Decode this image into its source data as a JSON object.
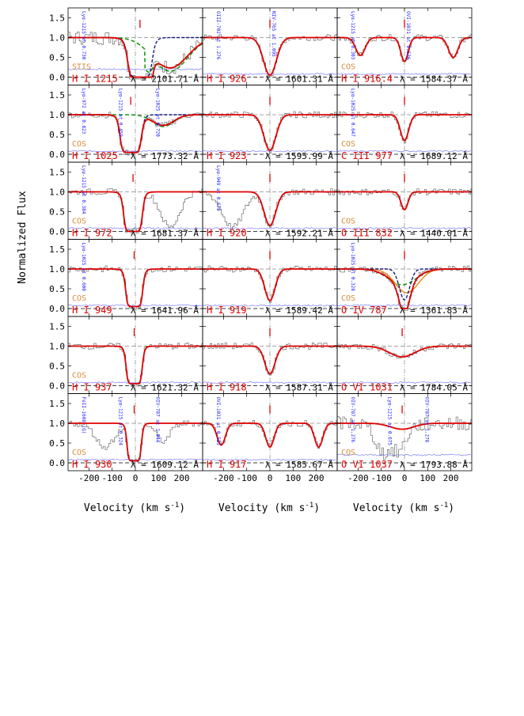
{
  "figure": {
    "ylabel": "Normalized Flux",
    "xlabel": "Velocity (km s",
    "xlabel_exp": "-1",
    "xlabel_close": ")",
    "colors": {
      "data": "#555555",
      "error": "#6a6aff",
      "fit": "#e00000",
      "component": "#1a1a80",
      "blend_fit": "#1a9a1a",
      "blend_fit2": "#e88a1a",
      "ion_label": "#e00000",
      "instrument": "#d98c3a",
      "annotation": "#1a1aff"
    }
  },
  "chart_data": [
    {
      "panel": 1,
      "type": "line",
      "ion": "H I 1215",
      "lambda": "λ = 2101.71 Å",
      "instrument": "STIS",
      "line": {
        "center": 20,
        "depth": 1.0,
        "width": 55,
        "profile": "damped"
      },
      "blend": {
        "center": 150,
        "depth": 0.85,
        "width": 75
      },
      "annotations": [
        "Lyα-1215 at 0.730"
      ],
      "xlim": [
        -290,
        290
      ],
      "ylim": [
        -0.2,
        1.75
      ]
    },
    {
      "panel": 2,
      "type": "line",
      "ion": "H I 926",
      "lambda": "λ = 1601.31 Å",
      "instrument": "",
      "line": {
        "center": 0,
        "depth": 0.95,
        "width": 28
      },
      "annotations": [
        "OIII-702 at 1.276",
        "NIV-765 at 1.095"
      ],
      "xlim": [
        -290,
        290
      ],
      "ylim": [
        -0.2,
        1.75
      ]
    },
    {
      "panel": 3,
      "type": "line",
      "ion": "H I 916.4",
      "lambda": "λ = 1584.37 Å",
      "instrument": "COS",
      "line": {
        "center": 0,
        "depth": 0.6,
        "width": 16
      },
      "extra": [
        {
          "center": -190,
          "depth": 0.45,
          "width": 20
        },
        {
          "center": 210,
          "depth": 0.5,
          "width": 20
        }
      ],
      "annotations": [
        "Lyα-1215 at 0.303",
        "OVI-1031 at 0.536"
      ],
      "xlim": [
        -290,
        290
      ],
      "ylim": [
        -0.2,
        1.75
      ]
    },
    {
      "panel": 4,
      "type": "line",
      "ion": "H I 1025",
      "lambda": "λ = 1773.32 Å",
      "instrument": "COS",
      "line": {
        "center": -20,
        "depth": 0.95,
        "width": 48,
        "profile": "box"
      },
      "blend": {
        "center": 120,
        "depth": 0.3,
        "width": 45
      },
      "annotations": [
        "Lyα-972 at 0.823",
        "Lyα-1215 at 0.459",
        "Lyα-1025 at 0.720"
      ],
      "xlim": [
        -290,
        290
      ],
      "ylim": [
        -0.2,
        1.75
      ]
    },
    {
      "panel": 5,
      "type": "line",
      "ion": "H I 923",
      "lambda": "λ = 1595.99 Å",
      "instrument": "",
      "line": {
        "center": 0,
        "depth": 0.9,
        "width": 26
      },
      "annotations": [],
      "xlim": [
        -290,
        290
      ],
      "ylim": [
        -0.2,
        1.75
      ]
    },
    {
      "panel": 6,
      "type": "line",
      "ion": "C III 977",
      "lambda": "λ = 1689.12 Å",
      "instrument": "COS",
      "line": {
        "center": 0,
        "depth": 0.65,
        "width": 18
      },
      "annotations": [
        "Lyα-1025 at 0.647"
      ],
      "xlim": [
        -290,
        290
      ],
      "ylim": [
        -0.2,
        1.75
      ]
    },
    {
      "panel": 7,
      "type": "line",
      "ion": "H I 972",
      "lambda": "λ = 1681.37 Å",
      "instrument": "COS",
      "line": {
        "center": -10,
        "depth": 1.0,
        "width": 42,
        "profile": "box"
      },
      "data_extra": [
        {
          "center": 150,
          "depth": 0.9,
          "width": 40
        }
      ],
      "annotations": [
        "Lyα-1215 at 0.384"
      ],
      "xlim": [
        -290,
        290
      ],
      "ylim": [
        -0.2,
        1.75
      ]
    },
    {
      "panel": 8,
      "type": "line",
      "ion": "H I 920",
      "lambda": "λ = 1592.21 Å",
      "instrument": "",
      "line": {
        "center": 0,
        "depth": 0.85,
        "width": 25
      },
      "data_extra": [
        {
          "center": -160,
          "depth": 0.9,
          "width": 45
        }
      ],
      "annotations": [
        "Lyα-949 at 0.678"
      ],
      "xlim": [
        -290,
        290
      ],
      "ylim": [
        -0.2,
        1.75
      ]
    },
    {
      "panel": 9,
      "type": "line",
      "ion": "O III 832",
      "lambda": "λ = 1440.01 Å",
      "instrument": "COS",
      "line": {
        "center": 0,
        "depth": 0.45,
        "width": 15
      },
      "annotations": [],
      "xlim": [
        -290,
        290
      ],
      "ylim": [
        -0.2,
        1.75
      ]
    },
    {
      "panel": 10,
      "type": "line",
      "ion": "H I 949",
      "lambda": "λ = 1641.96 Å",
      "instrument": "COS",
      "line": {
        "center": -5,
        "depth": 0.95,
        "width": 38,
        "profile": "box"
      },
      "annotations": [
        "Lyα-1025 at 0.600"
      ],
      "xlim": [
        -290,
        290
      ],
      "ylim": [
        -0.2,
        1.75
      ]
    },
    {
      "panel": 11,
      "type": "line",
      "ion": "H I 919",
      "lambda": "λ = 1589.42 Å",
      "instrument": "",
      "line": {
        "center": 0,
        "depth": 0.8,
        "width": 22
      },
      "annotations": [],
      "xlim": [
        -290,
        290
      ],
      "ylim": [
        -0.2,
        1.75
      ]
    },
    {
      "panel": 12,
      "type": "line",
      "ion": "O IV 787",
      "lambda": "λ = 1361.83 Å",
      "instrument": "COS",
      "line": {
        "center": 0,
        "depth": 0.78,
        "width": 22
      },
      "blend": {
        "center": -10,
        "depth": 0.4,
        "width": 60
      },
      "blend2": {
        "center": 10,
        "depth": 0.6,
        "width": 50
      },
      "annotations": [
        "Lyα-1025 at 0.328"
      ],
      "xlim": [
        -290,
        290
      ],
      "ylim": [
        -0.2,
        1.75
      ]
    },
    {
      "panel": 13,
      "type": "line",
      "ion": "H I 937",
      "lambda": "λ = 1621.32 Å",
      "instrument": "COS",
      "line": {
        "center": -5,
        "depth": 0.95,
        "width": 36,
        "profile": "box"
      },
      "annotations": [],
      "xlim": [
        -290,
        290
      ],
      "ylim": [
        -0.2,
        1.75
      ]
    },
    {
      "panel": 14,
      "type": "line",
      "ion": "H I 918",
      "lambda": "λ = 1587.31 Å",
      "instrument": "",
      "line": {
        "center": 0,
        "depth": 0.7,
        "width": 22
      },
      "annotations": [],
      "xlim": [
        -290,
        290
      ],
      "ylim": [
        -0.2,
        1.75
      ]
    },
    {
      "panel": 15,
      "type": "line",
      "ion": "O VI 1031",
      "lambda": "λ = 1784.05 Å",
      "instrument": "",
      "line": {
        "center": -10,
        "depth": 0.27,
        "width": 55
      },
      "annotations": [],
      "xlim": [
        -290,
        290
      ],
      "ylim": [
        -0.2,
        1.75
      ]
    },
    {
      "panel": 16,
      "type": "line",
      "ion": "H I 930",
      "lambda": "λ = 1609.12 Å",
      "instrument": "COS",
      "line": {
        "center": -5,
        "depth": 0.95,
        "width": 32,
        "profile": "box"
      },
      "data_extra": [
        {
          "center": -130,
          "depth": 0.6,
          "width": 40
        },
        {
          "center": 120,
          "depth": 0.45,
          "width": 30
        }
      ],
      "annotations": [
        "FeII-1608 (G)",
        "Lyα-1215 at 0.324",
        "OIV-787 at 1.044"
      ],
      "xlim": [
        -290,
        290
      ],
      "ylim": [
        -0.2,
        1.75
      ]
    },
    {
      "panel": 17,
      "type": "line",
      "ion": "H I 917",
      "lambda": "λ = 1585.67 Å",
      "instrument": "",
      "line": {
        "center": 0,
        "depth": 0.6,
        "width": 18
      },
      "extra": [
        {
          "center": -210,
          "depth": 0.55,
          "width": 18
        },
        {
          "center": 210,
          "depth": 0.6,
          "width": 18
        }
      ],
      "annotations": [
        "OVI-1031 at 0.535"
      ],
      "xlim": [
        -290,
        290
      ],
      "ylim": [
        -0.2,
        1.75
      ]
    },
    {
      "panel": 18,
      "type": "line",
      "ion": "O VI 1037",
      "lambda": "λ = 1793.88 Å",
      "instrument": "COS",
      "line": {
        "center": -10,
        "depth": 0.15,
        "width": 50
      },
      "data_extra": [
        {
          "center": -90,
          "depth": 0.7,
          "width": 35
        },
        {
          "center": -20,
          "depth": 0.45,
          "width": 25
        }
      ],
      "annotations": [
        "OIV-787 at 1.276",
        "Lyα-1215 at 0.675",
        "OIV-787 at 1.278"
      ],
      "xlim": [
        -290,
        290
      ],
      "ylim": [
        -0.2,
        1.75
      ]
    }
  ],
  "axes": {
    "yticks": [
      "0.0",
      "0.5",
      "1.0",
      "1.5"
    ],
    "ytick_values": [
      0.0,
      0.5,
      1.0,
      1.5
    ],
    "xticks": [
      "-200",
      "-100",
      "0",
      "100",
      "200"
    ],
    "xtick_values": [
      -200,
      -100,
      0,
      100,
      200
    ]
  }
}
